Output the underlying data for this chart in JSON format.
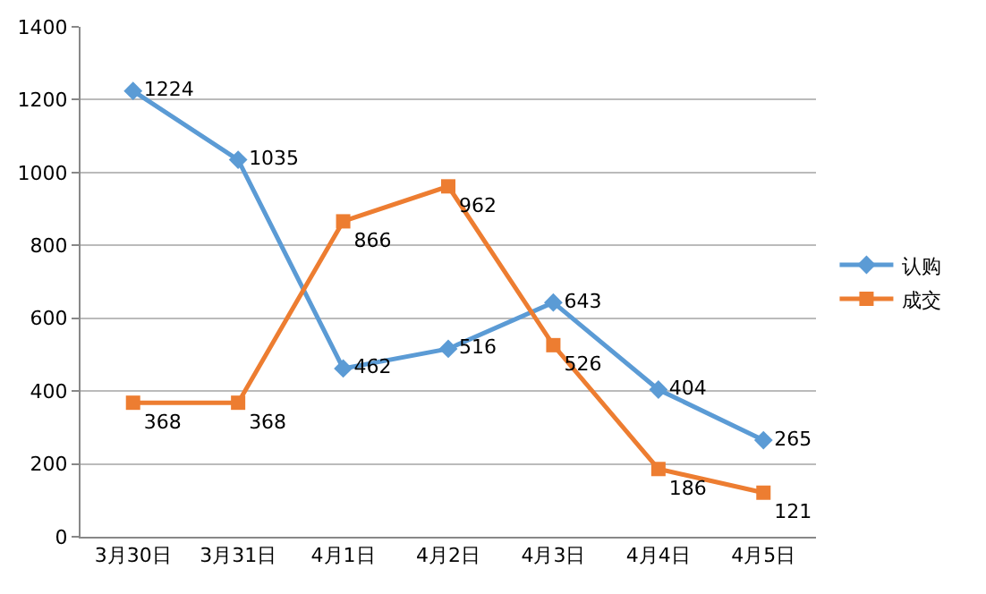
{
  "chart_data": {
    "type": "line",
    "categories": [
      "3月30日",
      "3月31日",
      "4月1日",
      "4月2日",
      "4月3日",
      "4月4日",
      "4月5日"
    ],
    "series": [
      {
        "name": "认购",
        "color": "#5b9bd5",
        "marker": "diamond",
        "values": [
          1224,
          1035,
          462,
          516,
          643,
          404,
          265
        ]
      },
      {
        "name": "成交",
        "color": "#ed7d31",
        "marker": "square",
        "values": [
          368,
          368,
          866,
          962,
          526,
          186,
          121
        ]
      }
    ],
    "ylim": [
      0,
      1400
    ],
    "yticks": [
      0,
      200,
      400,
      600,
      800,
      1000,
      1200,
      1400
    ],
    "grid": "y",
    "legend": "right",
    "data_labels": true,
    "line_style": "solid"
  }
}
